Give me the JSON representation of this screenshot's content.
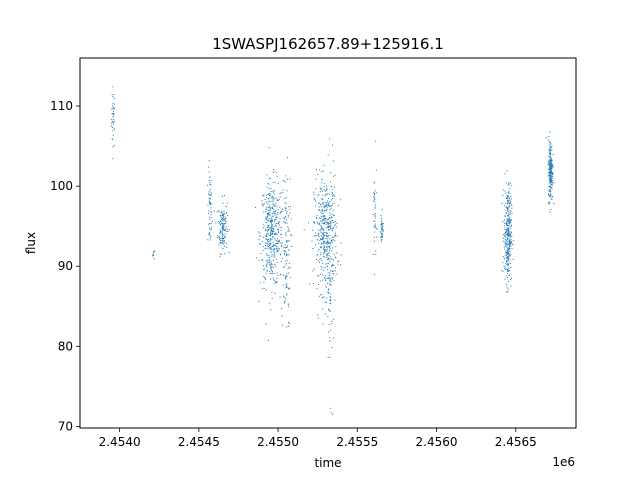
{
  "chart_data": {
    "type": "scatter",
    "title": "1SWASPJ162657.89+125916.1",
    "xlabel": "time",
    "ylabel": "flux",
    "x_offset_label": "1e6",
    "xlim": [
      2453750,
      2456880
    ],
    "ylim": [
      69.8,
      116.0
    ],
    "x_ticks": [
      2454000,
      2454500,
      2455000,
      2455500,
      2456000,
      2456500
    ],
    "x_tick_labels": [
      "2.4540",
      "2.4545",
      "2.4550",
      "2.4555",
      "2.4560",
      "2.4565"
    ],
    "y_ticks": [
      70,
      80,
      90,
      100,
      110
    ],
    "y_tick_labels": [
      "70",
      "80",
      "90",
      "100",
      "110"
    ],
    "grid": false,
    "marker_color": "#1f77b4",
    "clusters": [
      {
        "x_center": 2453960,
        "x_spread": 10,
        "y_center": 108.5,
        "y_spread": 3.5,
        "n": 40
      },
      {
        "x_center": 2454215,
        "x_spread": 6,
        "y_center": 91.5,
        "y_spread": 0.5,
        "n": 10
      },
      {
        "x_center": 2454570,
        "x_spread": 12,
        "y_center": 97.0,
        "y_spread": 4.5,
        "n": 60
      },
      {
        "x_center": 2454650,
        "x_spread": 25,
        "y_center": 95.0,
        "y_spread": 3.0,
        "n": 140
      },
      {
        "x_center": 2454960,
        "x_spread": 60,
        "y_center": 94.0,
        "y_spread": 6.0,
        "n": 420
      },
      {
        "x_center": 2455050,
        "x_spread": 25,
        "y_center": 92.0,
        "y_spread": 9.0,
        "n": 120
      },
      {
        "x_center": 2455300,
        "x_spread": 60,
        "y_center": 94.0,
        "y_spread": 6.5,
        "n": 420
      },
      {
        "x_center": 2455330,
        "x_spread": 20,
        "y_center": 88.0,
        "y_spread": 12.0,
        "n": 80
      },
      {
        "x_center": 2455610,
        "x_spread": 10,
        "y_center": 96.0,
        "y_spread": 6.0,
        "n": 40
      },
      {
        "x_center": 2455655,
        "x_spread": 8,
        "y_center": 94.5,
        "y_spread": 1.8,
        "n": 40
      },
      {
        "x_center": 2456450,
        "x_spread": 20,
        "y_center": 94.0,
        "y_spread": 5.5,
        "n": 320
      },
      {
        "x_center": 2456720,
        "x_spread": 12,
        "y_center": 102.0,
        "y_spread": 3.5,
        "n": 220
      }
    ]
  }
}
